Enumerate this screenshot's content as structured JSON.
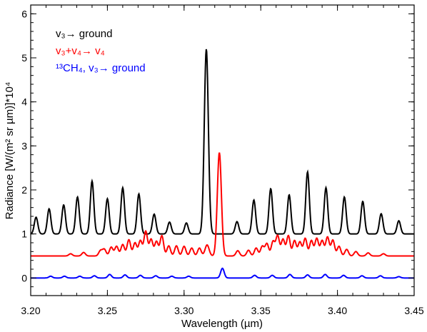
{
  "chart_data": {
    "type": "line",
    "xlabel": "Wavelength (µm)",
    "ylabel": "Radiance [W/(m² sr µm)]*10⁴",
    "xlim": [
      3.2,
      3.45
    ],
    "ylim": [
      -0.4,
      6.2
    ],
    "x_ticks": [
      "3.20",
      "3.25",
      "3.30",
      "3.35",
      "3.40",
      "3.45"
    ],
    "y_ticks": [
      "0",
      "1",
      "2",
      "3",
      "4",
      "5",
      "6"
    ],
    "grid": false,
    "legend_position": "top-left",
    "series": [
      {
        "name": "v3→ ground",
        "legend": {
          "text": "v₃→ ground"
        },
        "color": "#000000",
        "baseline": 1.0,
        "peaks": [
          {
            "x": 3.2035,
            "y": 1.38
          },
          {
            "x": 3.212,
            "y": 1.57
          },
          {
            "x": 3.2215,
            "y": 1.66
          },
          {
            "x": 3.2305,
            "y": 1.84
          },
          {
            "x": 3.24,
            "y": 2.2
          },
          {
            "x": 3.25,
            "y": 1.8
          },
          {
            "x": 3.26,
            "y": 2.05
          },
          {
            "x": 3.2705,
            "y": 1.91
          },
          {
            "x": 3.2805,
            "y": 1.45
          },
          {
            "x": 3.2905,
            "y": 1.27
          },
          {
            "x": 3.3015,
            "y": 1.25
          },
          {
            "x": 3.3145,
            "y": 5.2
          },
          {
            "x": 3.3345,
            "y": 1.28
          },
          {
            "x": 3.3455,
            "y": 1.77
          },
          {
            "x": 3.3565,
            "y": 2.03
          },
          {
            "x": 3.3685,
            "y": 1.89
          },
          {
            "x": 3.3805,
            "y": 2.41
          },
          {
            "x": 3.3925,
            "y": 2.05
          },
          {
            "x": 3.4045,
            "y": 1.84
          },
          {
            "x": 3.4165,
            "y": 1.74
          },
          {
            "x": 3.4285,
            "y": 1.46
          },
          {
            "x": 3.44,
            "y": 1.3
          }
        ]
      },
      {
        "name": "v3+v4→ v4",
        "legend": {
          "text": "v₃+v₄→ v₄"
        },
        "color": "#ff0000",
        "baseline": 0.5,
        "peaks": [
          {
            "x": 3.226,
            "y": 0.55
          },
          {
            "x": 3.2345,
            "y": 0.58
          },
          {
            "x": 3.2455,
            "y": 0.62
          },
          {
            "x": 3.248,
            "y": 0.65
          },
          {
            "x": 3.2525,
            "y": 0.7
          },
          {
            "x": 3.256,
            "y": 0.72
          },
          {
            "x": 3.26,
            "y": 0.76
          },
          {
            "x": 3.264,
            "y": 0.87
          },
          {
            "x": 3.268,
            "y": 0.8
          },
          {
            "x": 3.2715,
            "y": 0.85
          },
          {
            "x": 3.275,
            "y": 1.06
          },
          {
            "x": 3.2785,
            "y": 0.88
          },
          {
            "x": 3.282,
            "y": 0.83
          },
          {
            "x": 3.2855,
            "y": 0.96
          },
          {
            "x": 3.29,
            "y": 0.73
          },
          {
            "x": 3.295,
            "y": 0.73
          },
          {
            "x": 3.3,
            "y": 0.72
          },
          {
            "x": 3.305,
            "y": 0.68
          },
          {
            "x": 3.31,
            "y": 0.68
          },
          {
            "x": 3.315,
            "y": 0.75
          },
          {
            "x": 3.323,
            "y": 2.85
          },
          {
            "x": 3.335,
            "y": 0.62
          },
          {
            "x": 3.342,
            "y": 0.63
          },
          {
            "x": 3.347,
            "y": 0.68
          },
          {
            "x": 3.351,
            "y": 0.72
          },
          {
            "x": 3.354,
            "y": 0.78
          },
          {
            "x": 3.358,
            "y": 0.83
          },
          {
            "x": 3.361,
            "y": 0.96
          },
          {
            "x": 3.3645,
            "y": 0.88
          },
          {
            "x": 3.368,
            "y": 0.96
          },
          {
            "x": 3.372,
            "y": 0.85
          },
          {
            "x": 3.3755,
            "y": 0.82
          },
          {
            "x": 3.379,
            "y": 0.9
          },
          {
            "x": 3.383,
            "y": 0.85
          },
          {
            "x": 3.3865,
            "y": 0.9
          },
          {
            "x": 3.39,
            "y": 0.85
          },
          {
            "x": 3.3935,
            "y": 0.93
          },
          {
            "x": 3.397,
            "y": 0.86
          },
          {
            "x": 3.401,
            "y": 0.72
          },
          {
            "x": 3.406,
            "y": 0.65
          },
          {
            "x": 3.412,
            "y": 0.6
          },
          {
            "x": 3.42,
            "y": 0.57
          },
          {
            "x": 3.43,
            "y": 0.55
          }
        ]
      },
      {
        "name": "13CH4, v3→ ground",
        "legend": {
          "text": "¹³CH₄, v₃→ ground"
        },
        "color": "#0000ff",
        "baseline": 0.0,
        "peaks": [
          {
            "x": 3.213,
            "y": 0.04
          },
          {
            "x": 3.222,
            "y": 0.04
          },
          {
            "x": 3.232,
            "y": 0.04
          },
          {
            "x": 3.2415,
            "y": 0.05
          },
          {
            "x": 3.2515,
            "y": 0.08
          },
          {
            "x": 3.2615,
            "y": 0.07
          },
          {
            "x": 3.2715,
            "y": 0.06
          },
          {
            "x": 3.2815,
            "y": 0.05
          },
          {
            "x": 3.292,
            "y": 0.04
          },
          {
            "x": 3.303,
            "y": 0.04
          },
          {
            "x": 3.325,
            "y": 0.22
          },
          {
            "x": 3.346,
            "y": 0.06
          },
          {
            "x": 3.3575,
            "y": 0.06
          },
          {
            "x": 3.369,
            "y": 0.08
          },
          {
            "x": 3.3805,
            "y": 0.07
          },
          {
            "x": 3.392,
            "y": 0.08
          },
          {
            "x": 3.404,
            "y": 0.06
          },
          {
            "x": 3.416,
            "y": 0.05
          },
          {
            "x": 3.428,
            "y": 0.05
          },
          {
            "x": 3.44,
            "y": 0.03
          }
        ]
      }
    ]
  }
}
